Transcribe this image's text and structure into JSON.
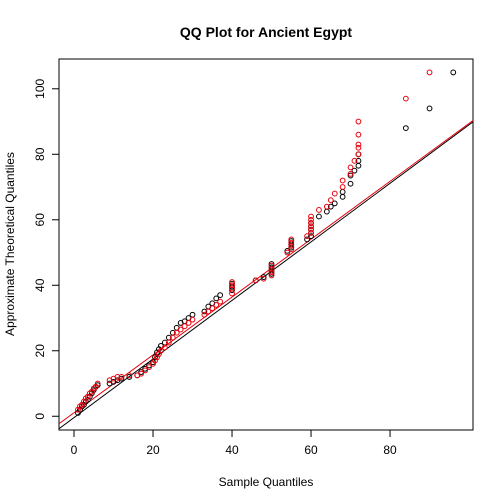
{
  "chart_data": {
    "type": "scatter",
    "title": "QQ Plot for Ancient Egypt",
    "xlabel": "Sample Quantiles",
    "ylabel": "Approximate Theoretical Quantiles",
    "xlim": [
      -3.8,
      101
    ],
    "ylim": [
      -4.2,
      109.1
    ],
    "xticks": [
      0,
      20,
      40,
      60,
      80
    ],
    "yticks": [
      0,
      20,
      40,
      60,
      80,
      100
    ],
    "grid": false,
    "series": [
      {
        "color": "#000000",
        "marker": "open-circle",
        "points": [
          [
            1,
            1
          ],
          [
            1.5,
            2
          ],
          [
            2,
            3
          ],
          [
            2.5,
            3.5
          ],
          [
            3,
            4.5
          ],
          [
            3.5,
            5
          ],
          [
            4,
            6
          ],
          [
            4.5,
            7
          ],
          [
            5,
            8
          ],
          [
            5.5,
            9
          ],
          [
            6,
            9.5
          ],
          [
            9,
            10
          ],
          [
            10,
            10.5
          ],
          [
            11,
            11
          ],
          [
            12,
            11.5
          ],
          [
            14,
            12
          ],
          [
            16,
            12.5
          ],
          [
            17,
            13.5
          ],
          [
            18,
            14.5
          ],
          [
            19,
            15.5
          ],
          [
            20,
            16.5
          ],
          [
            20.5,
            18
          ],
          [
            21,
            19.5
          ],
          [
            21.5,
            20.5
          ],
          [
            22,
            21.5
          ],
          [
            23,
            22.5
          ],
          [
            24,
            24
          ],
          [
            25,
            25.5
          ],
          [
            26,
            27
          ],
          [
            27,
            28.5
          ],
          [
            28,
            29
          ],
          [
            29,
            30
          ],
          [
            30,
            31
          ],
          [
            33,
            32
          ],
          [
            34,
            33.5
          ],
          [
            35,
            34.5
          ],
          [
            36,
            36
          ],
          [
            37,
            37
          ],
          [
            40,
            38.5
          ],
          [
            40,
            39.5
          ],
          [
            40,
            40.5
          ],
          [
            46,
            41.5
          ],
          [
            48,
            42.5
          ],
          [
            50,
            43.5
          ],
          [
            50,
            44.5
          ],
          [
            50,
            45.5
          ],
          [
            50,
            46.5
          ],
          [
            54,
            50.5
          ],
          [
            55,
            51.5
          ],
          [
            55,
            52.5
          ],
          [
            55,
            53.5
          ],
          [
            59,
            54
          ],
          [
            60,
            55
          ],
          [
            60,
            56
          ],
          [
            60,
            57
          ],
          [
            60,
            58
          ],
          [
            60,
            59
          ],
          [
            62,
            61
          ],
          [
            64,
            62.5
          ],
          [
            65,
            64
          ],
          [
            66,
            65
          ],
          [
            68,
            67
          ],
          [
            68,
            68.5
          ],
          [
            70,
            71
          ],
          [
            70,
            73.5
          ],
          [
            71,
            75
          ],
          [
            72,
            76.5
          ],
          [
            72,
            78
          ],
          [
            72,
            80
          ],
          [
            84,
            88
          ],
          [
            90,
            94
          ],
          [
            96,
            105
          ]
        ],
        "reference_line": [
          [
            -3.8,
            -3.8
          ],
          [
            101,
            89.9
          ]
        ]
      },
      {
        "color": "#e8000b",
        "marker": "open-circle",
        "points": [
          [
            1,
            2
          ],
          [
            1.5,
            3
          ],
          [
            2,
            3.5
          ],
          [
            2.5,
            4.5
          ],
          [
            3,
            5.5
          ],
          [
            3.5,
            6
          ],
          [
            4,
            7
          ],
          [
            4.5,
            7.5
          ],
          [
            5,
            8.5
          ],
          [
            5.5,
            9
          ],
          [
            6,
            10
          ],
          [
            9,
            11
          ],
          [
            10,
            11.5
          ],
          [
            11,
            12
          ],
          [
            12,
            12
          ],
          [
            14,
            12.5
          ],
          [
            16,
            12.5
          ],
          [
            17,
            13
          ],
          [
            18,
            14
          ],
          [
            19,
            15
          ],
          [
            20,
            16
          ],
          [
            20.5,
            17
          ],
          [
            21,
            18
          ],
          [
            21.5,
            19
          ],
          [
            22,
            20
          ],
          [
            23,
            21
          ],
          [
            24,
            22.5
          ],
          [
            25,
            24
          ],
          [
            26,
            25.5
          ],
          [
            27,
            26.5
          ],
          [
            28,
            27.5
          ],
          [
            29,
            28.5
          ],
          [
            30,
            29.5
          ],
          [
            33,
            31
          ],
          [
            34,
            32
          ],
          [
            35,
            33
          ],
          [
            36,
            34
          ],
          [
            37,
            35
          ],
          [
            40,
            37.5
          ],
          [
            40,
            39
          ],
          [
            40,
            40
          ],
          [
            40,
            41
          ],
          [
            46,
            41.5
          ],
          [
            48,
            42
          ],
          [
            50,
            43
          ],
          [
            50,
            44
          ],
          [
            50,
            45
          ],
          [
            50,
            46
          ],
          [
            54,
            50
          ],
          [
            55,
            51
          ],
          [
            55,
            52
          ],
          [
            55,
            53
          ],
          [
            55,
            54
          ],
          [
            59,
            55
          ],
          [
            60,
            56
          ],
          [
            60,
            57
          ],
          [
            60,
            58
          ],
          [
            60,
            59
          ],
          [
            60,
            60
          ],
          [
            60,
            61
          ],
          [
            62,
            63
          ],
          [
            64,
            64
          ],
          [
            65,
            66
          ],
          [
            66,
            68
          ],
          [
            68,
            70
          ],
          [
            68,
            72
          ],
          [
            70,
            74
          ],
          [
            70,
            76
          ],
          [
            71,
            78
          ],
          [
            72,
            80
          ],
          [
            72,
            82
          ],
          [
            72,
            83
          ],
          [
            72,
            86
          ],
          [
            72,
            90
          ],
          [
            84,
            97
          ],
          [
            90,
            105
          ]
        ],
        "reference_line": [
          [
            -3.8,
            -2.3
          ],
          [
            101,
            90.3
          ]
        ]
      }
    ]
  }
}
